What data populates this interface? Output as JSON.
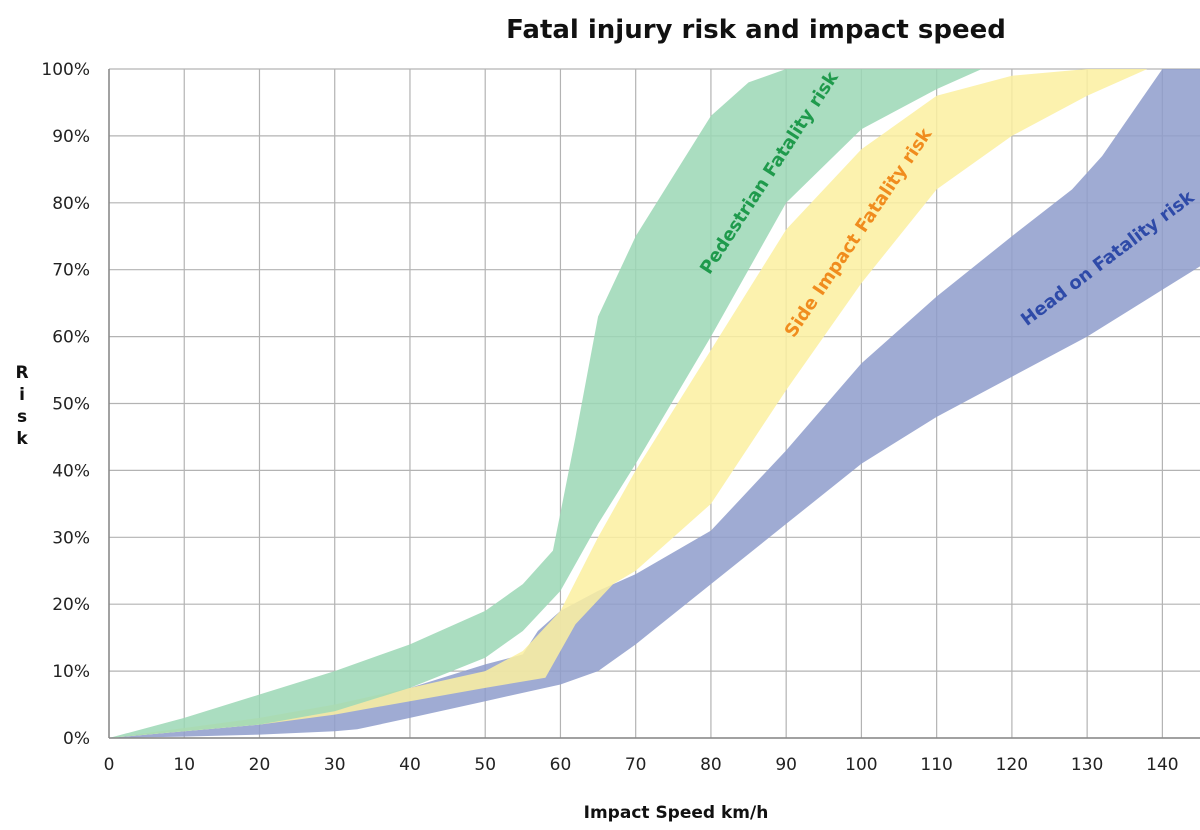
{
  "chart_data": {
    "type": "area",
    "title": "Fatal injury risk and impact speed",
    "xlabel": "Impact Speed km/h",
    "ylabel": "Risk",
    "xlim": [
      0,
      145
    ],
    "ylim": [
      0,
      100
    ],
    "x_ticks": [
      0,
      10,
      20,
      30,
      40,
      50,
      60,
      70,
      80,
      90,
      100,
      110,
      120,
      130,
      140
    ],
    "y_ticks": [
      0,
      10,
      20,
      30,
      40,
      50,
      60,
      70,
      80,
      90,
      100
    ],
    "y_tick_labels": [
      "0%",
      "10%",
      "20%",
      "30%",
      "40%",
      "50%",
      "60%",
      "70%",
      "80%",
      "90%",
      "100%"
    ],
    "grid": true,
    "series": [
      {
        "name": "Head on Fatality risk",
        "color": "#8e9ccb",
        "label_color": "#2e4aa8",
        "upper": [
          [
            0,
            0
          ],
          [
            10,
            1
          ],
          [
            20,
            2
          ],
          [
            30,
            4
          ],
          [
            40,
            7.5
          ],
          [
            50,
            11
          ],
          [
            55,
            12.5
          ],
          [
            57,
            16
          ],
          [
            60,
            19
          ],
          [
            65,
            22
          ],
          [
            70,
            24.5
          ],
          [
            80,
            31
          ],
          [
            90,
            43
          ],
          [
            100,
            56
          ],
          [
            110,
            66
          ],
          [
            120,
            75
          ],
          [
            128,
            82
          ],
          [
            132,
            87
          ],
          [
            140,
            100
          ],
          [
            145,
            100
          ]
        ],
        "lower": [
          [
            0,
            0
          ],
          [
            10,
            0.2
          ],
          [
            20,
            0.5
          ],
          [
            30,
            1
          ],
          [
            33,
            1.3
          ],
          [
            40,
            3
          ],
          [
            50,
            5.5
          ],
          [
            60,
            8
          ],
          [
            65,
            10
          ],
          [
            70,
            14
          ],
          [
            80,
            23
          ],
          [
            90,
            32
          ],
          [
            100,
            41
          ],
          [
            110,
            48
          ],
          [
            120,
            54
          ],
          [
            130,
            60
          ],
          [
            140,
            67
          ],
          [
            145,
            70.5
          ]
        ]
      },
      {
        "name": "Side Impact Fatality risk",
        "color": "#fbf0a0",
        "label_color": "#f08c1e",
        "upper": [
          [
            0,
            0
          ],
          [
            10,
            1.5
          ],
          [
            20,
            3
          ],
          [
            30,
            5
          ],
          [
            40,
            7.5
          ],
          [
            50,
            10
          ],
          [
            55,
            13
          ],
          [
            60,
            19
          ],
          [
            65,
            30
          ],
          [
            70,
            40
          ],
          [
            80,
            58
          ],
          [
            90,
            76
          ],
          [
            100,
            88
          ],
          [
            110,
            96
          ],
          [
            120,
            99
          ],
          [
            130,
            100
          ],
          [
            140,
            100
          ]
        ],
        "lower": [
          [
            0,
            0
          ],
          [
            10,
            1
          ],
          [
            20,
            2
          ],
          [
            30,
            3.5
          ],
          [
            40,
            5.5
          ],
          [
            50,
            7.5
          ],
          [
            58,
            9
          ],
          [
            62,
            17
          ],
          [
            67,
            23
          ],
          [
            70,
            25
          ],
          [
            80,
            35
          ],
          [
            90,
            52
          ],
          [
            100,
            68
          ],
          [
            110,
            82
          ],
          [
            120,
            90
          ],
          [
            130,
            96
          ],
          [
            138,
            100
          ]
        ]
      },
      {
        "name": "Pedestrian Fatality risk",
        "color": "#9bd7b5",
        "label_color": "#1f9a4c",
        "upper": [
          [
            0,
            0
          ],
          [
            10,
            3
          ],
          [
            20,
            6.5
          ],
          [
            30,
            10
          ],
          [
            40,
            14
          ],
          [
            50,
            19
          ],
          [
            55,
            23
          ],
          [
            59,
            28
          ],
          [
            62,
            45
          ],
          [
            64,
            57
          ],
          [
            65,
            63
          ],
          [
            70,
            75
          ],
          [
            75,
            84
          ],
          [
            80,
            93
          ],
          [
            85,
            98
          ],
          [
            90,
            100
          ],
          [
            115,
            100
          ]
        ],
        "lower": [
          [
            0,
            0
          ],
          [
            10,
            1
          ],
          [
            20,
            2
          ],
          [
            30,
            4
          ],
          [
            40,
            7.5
          ],
          [
            50,
            12
          ],
          [
            55,
            16
          ],
          [
            60,
            22
          ],
          [
            65,
            32
          ],
          [
            70,
            41
          ],
          [
            80,
            60
          ],
          [
            90,
            80
          ],
          [
            100,
            91
          ],
          [
            110,
            97
          ],
          [
            116,
            100
          ]
        ]
      }
    ]
  }
}
